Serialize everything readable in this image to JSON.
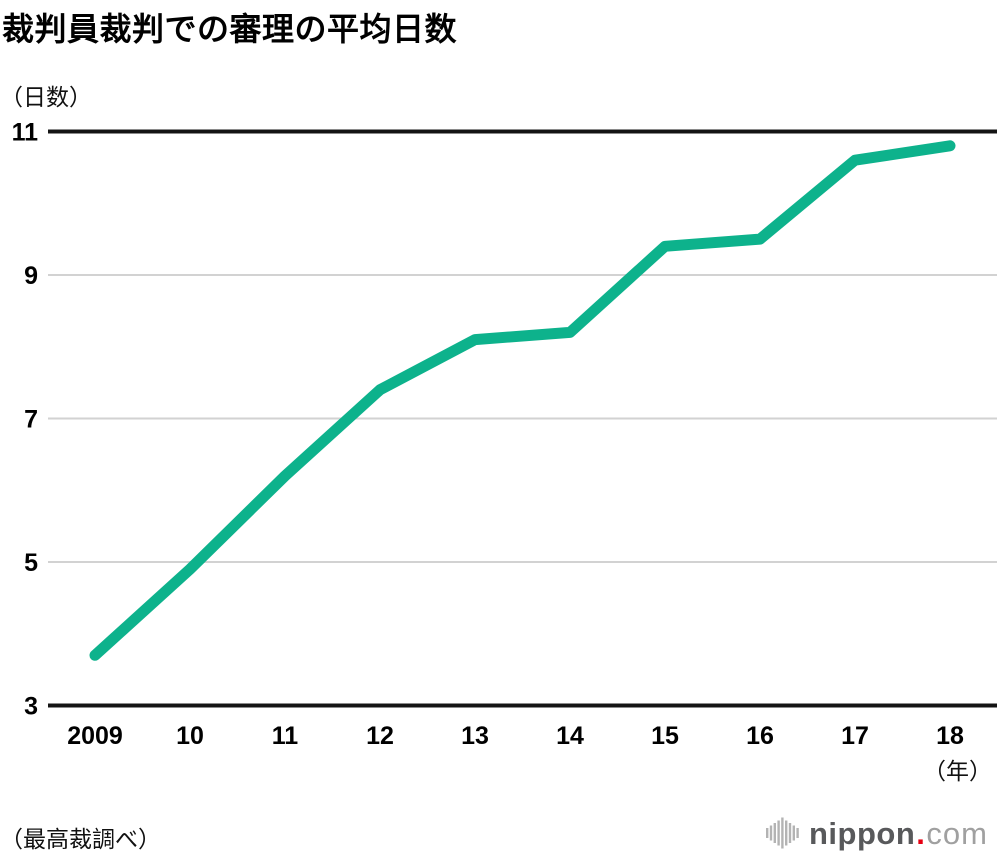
{
  "chart_data": {
    "type": "line",
    "title": "裁判員裁判での審理の平均日数",
    "ylabel": "（日数）",
    "xlabel": "（年）",
    "categories": [
      "2009",
      "10",
      "11",
      "12",
      "13",
      "14",
      "15",
      "16",
      "17",
      "18"
    ],
    "values": [
      3.7,
      4.9,
      6.2,
      7.4,
      8.1,
      8.2,
      9.4,
      9.5,
      10.6,
      10.8
    ],
    "ylim": [
      3,
      11
    ],
    "yticks": [
      3,
      5,
      7,
      9,
      11
    ],
    "line_color": "#0db28c",
    "grid": "horizontal",
    "legend": "none"
  },
  "source": "（最高裁調べ）",
  "branding": {
    "icon": "soundwave-bars-icon",
    "wordmark_bold": "nippon",
    "wordmark_dot": ".",
    "wordmark_light": "com",
    "bold_color": "#58595b",
    "dot_color": "#e60012",
    "light_color": "#a0a0a0"
  }
}
